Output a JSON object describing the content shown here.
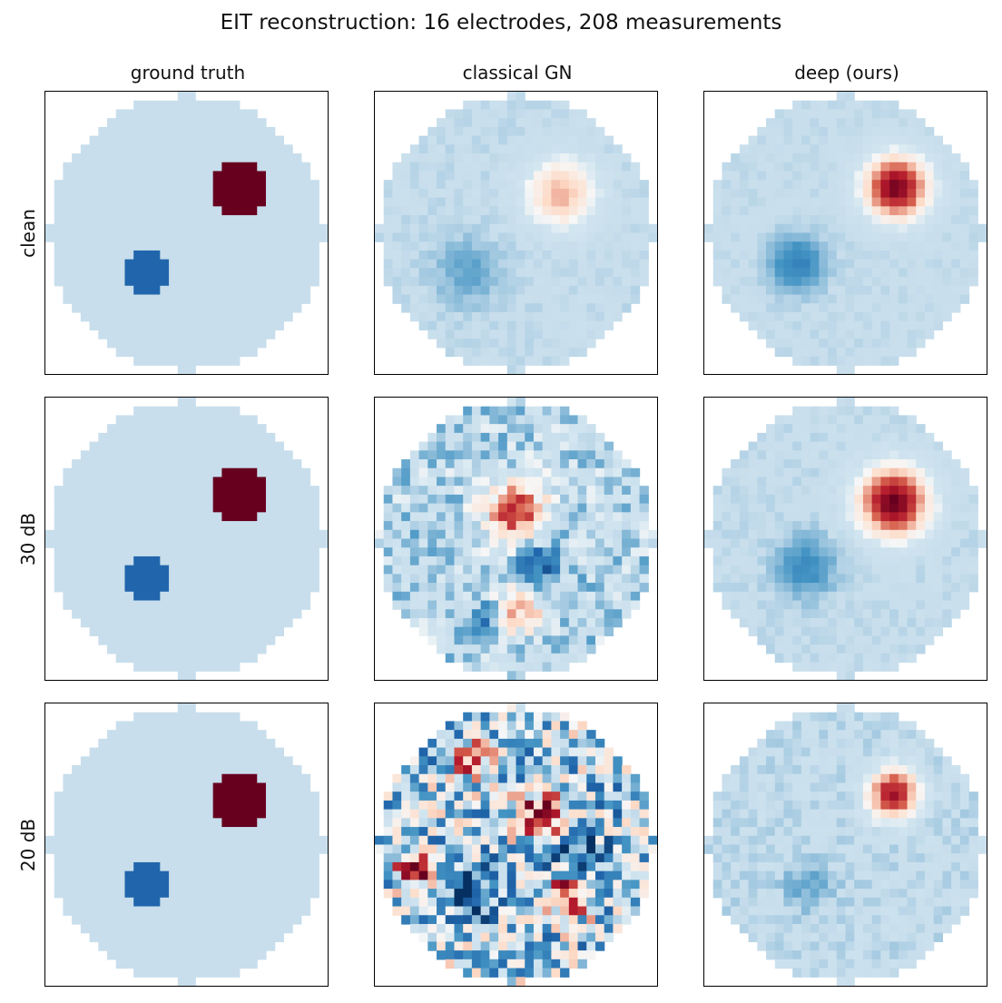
{
  "chart_data": {
    "type": "heatmap",
    "title": "EIT reconstruction: 16 electrodes, 208 measurements",
    "columns": [
      "ground truth",
      "classical GN",
      "deep (ours)"
    ],
    "rows": [
      "clean",
      "30 dB",
      "20 dB"
    ],
    "grid_size": 32,
    "colormap": "RdBu_r",
    "value_range": [
      -1,
      1
    ],
    "background_value": -0.25,
    "panels": [
      [
        {
          "blobs": [
            {
              "x": 0.68,
              "y": 0.34,
              "r": 0.1,
              "v": 1.0
            },
            {
              "x": 0.36,
              "y": 0.63,
              "r": 0.08,
              "v": -0.75
            }
          ],
          "noise": 0,
          "seed": 1
        },
        {
          "blobs": [
            {
              "x": 0.66,
              "y": 0.36,
              "r": 0.11,
              "v": 0.35
            },
            {
              "x": 0.33,
              "y": 0.64,
              "r": 0.11,
              "v": -0.45
            }
          ],
          "noise": 0.04,
          "seed": 2
        },
        {
          "blobs": [
            {
              "x": 0.68,
              "y": 0.34,
              "r": 0.1,
              "v": 0.95
            },
            {
              "x": 0.33,
              "y": 0.61,
              "r": 0.09,
              "v": -0.6
            }
          ],
          "noise": 0.03,
          "seed": 3
        }
      ],
      [
        {
          "blobs": [
            {
              "x": 0.68,
              "y": 0.34,
              "r": 0.1,
              "v": 1.0
            },
            {
              "x": 0.36,
              "y": 0.63,
              "r": 0.08,
              "v": -0.75
            }
          ],
          "noise": 0,
          "seed": 4
        },
        {
          "blobs": [
            {
              "x": 0.5,
              "y": 0.4,
              "r": 0.1,
              "v": 0.65
            },
            {
              "x": 0.58,
              "y": 0.59,
              "r": 0.07,
              "v": -0.8
            },
            {
              "x": 0.52,
              "y": 0.75,
              "r": 0.08,
              "v": 0.35
            },
            {
              "x": 0.38,
              "y": 0.78,
              "r": 0.06,
              "v": -0.6
            }
          ],
          "noise": 0.22,
          "seed": 5
        },
        {
          "blobs": [
            {
              "x": 0.67,
              "y": 0.37,
              "r": 0.11,
              "v": 0.98
            },
            {
              "x": 0.36,
              "y": 0.6,
              "r": 0.1,
              "v": -0.55
            }
          ],
          "noise": 0.04,
          "seed": 6
        }
      ],
      [
        {
          "blobs": [
            {
              "x": 0.68,
              "y": 0.34,
              "r": 0.1,
              "v": 1.0
            },
            {
              "x": 0.36,
              "y": 0.63,
              "r": 0.08,
              "v": -0.75
            }
          ],
          "noise": 0,
          "seed": 7
        },
        {
          "blobs": [
            {
              "x": 0.6,
              "y": 0.4,
              "r": 0.08,
              "v": 1.0
            },
            {
              "x": 0.68,
              "y": 0.68,
              "r": 0.08,
              "v": 0.7
            },
            {
              "x": 0.14,
              "y": 0.59,
              "r": 0.06,
              "v": 0.95
            },
            {
              "x": 0.35,
              "y": 0.68,
              "r": 0.09,
              "v": -0.95
            },
            {
              "x": 0.7,
              "y": 0.52,
              "r": 0.09,
              "v": -0.95
            },
            {
              "x": 0.35,
              "y": 0.2,
              "r": 0.06,
              "v": 0.7
            }
          ],
          "noise": 0.55,
          "seed": 8
        },
        {
          "blobs": [
            {
              "x": 0.67,
              "y": 0.32,
              "r": 0.08,
              "v": 0.8
            },
            {
              "x": 0.37,
              "y": 0.64,
              "r": 0.08,
              "v": -0.45
            }
          ],
          "noise": 0.07,
          "seed": 9
        }
      ]
    ]
  }
}
